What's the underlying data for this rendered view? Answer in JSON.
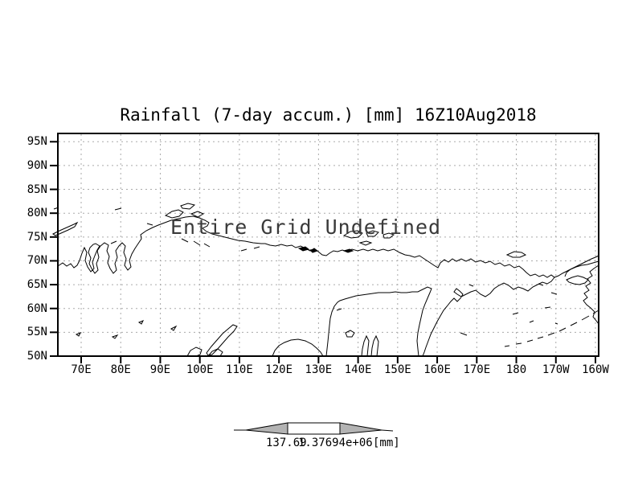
{
  "title": "Rainfall (7-day accum.) [mm] 16Z10Aug2018",
  "overlay_message": "Entire Grid Undefined",
  "axes": {
    "y_ticks": [
      "95N",
      "90N",
      "85N",
      "80N",
      "75N",
      "70N",
      "65N",
      "60N",
      "55N",
      "50N"
    ],
    "x_ticks": [
      "70E",
      "80E",
      "90E",
      "100E",
      "110E",
      "120E",
      "130E",
      "140E",
      "150E",
      "160E",
      "170E",
      "180",
      "170W",
      "160W"
    ]
  },
  "colorbar": {
    "left_label": "137.69",
    "right_label": "1.37694e+06",
    "units_label": "[mm]",
    "arrow_fill": "#b3b3b3"
  },
  "colors": {
    "foreground": "#000000",
    "gridline": "#aaaaaa",
    "message_text": "#3a3a3a",
    "background": "#ffffff"
  },
  "chart_data": {
    "type": "heatmap",
    "title": "Rainfall (7-day accum.) [mm] 16Z10Aug2018",
    "status_annotation": "Entire Grid Undefined",
    "x_ticklabels": [
      "70E",
      "80E",
      "90E",
      "100E",
      "110E",
      "120E",
      "130E",
      "140E",
      "150E",
      "160E",
      "170E",
      "180",
      "170W",
      "160W"
    ],
    "y_ticklabels": [
      "95N",
      "90N",
      "85N",
      "80N",
      "75N",
      "70N",
      "65N",
      "60N",
      "55N",
      "50N"
    ],
    "values": [],
    "grid": true,
    "basemap": "arctic-siberia-coastlines",
    "colorbar_labels": [
      "137.69",
      "1.37694e+06"
    ],
    "colorbar_units": "[mm]",
    "legend_position": "bottom"
  }
}
